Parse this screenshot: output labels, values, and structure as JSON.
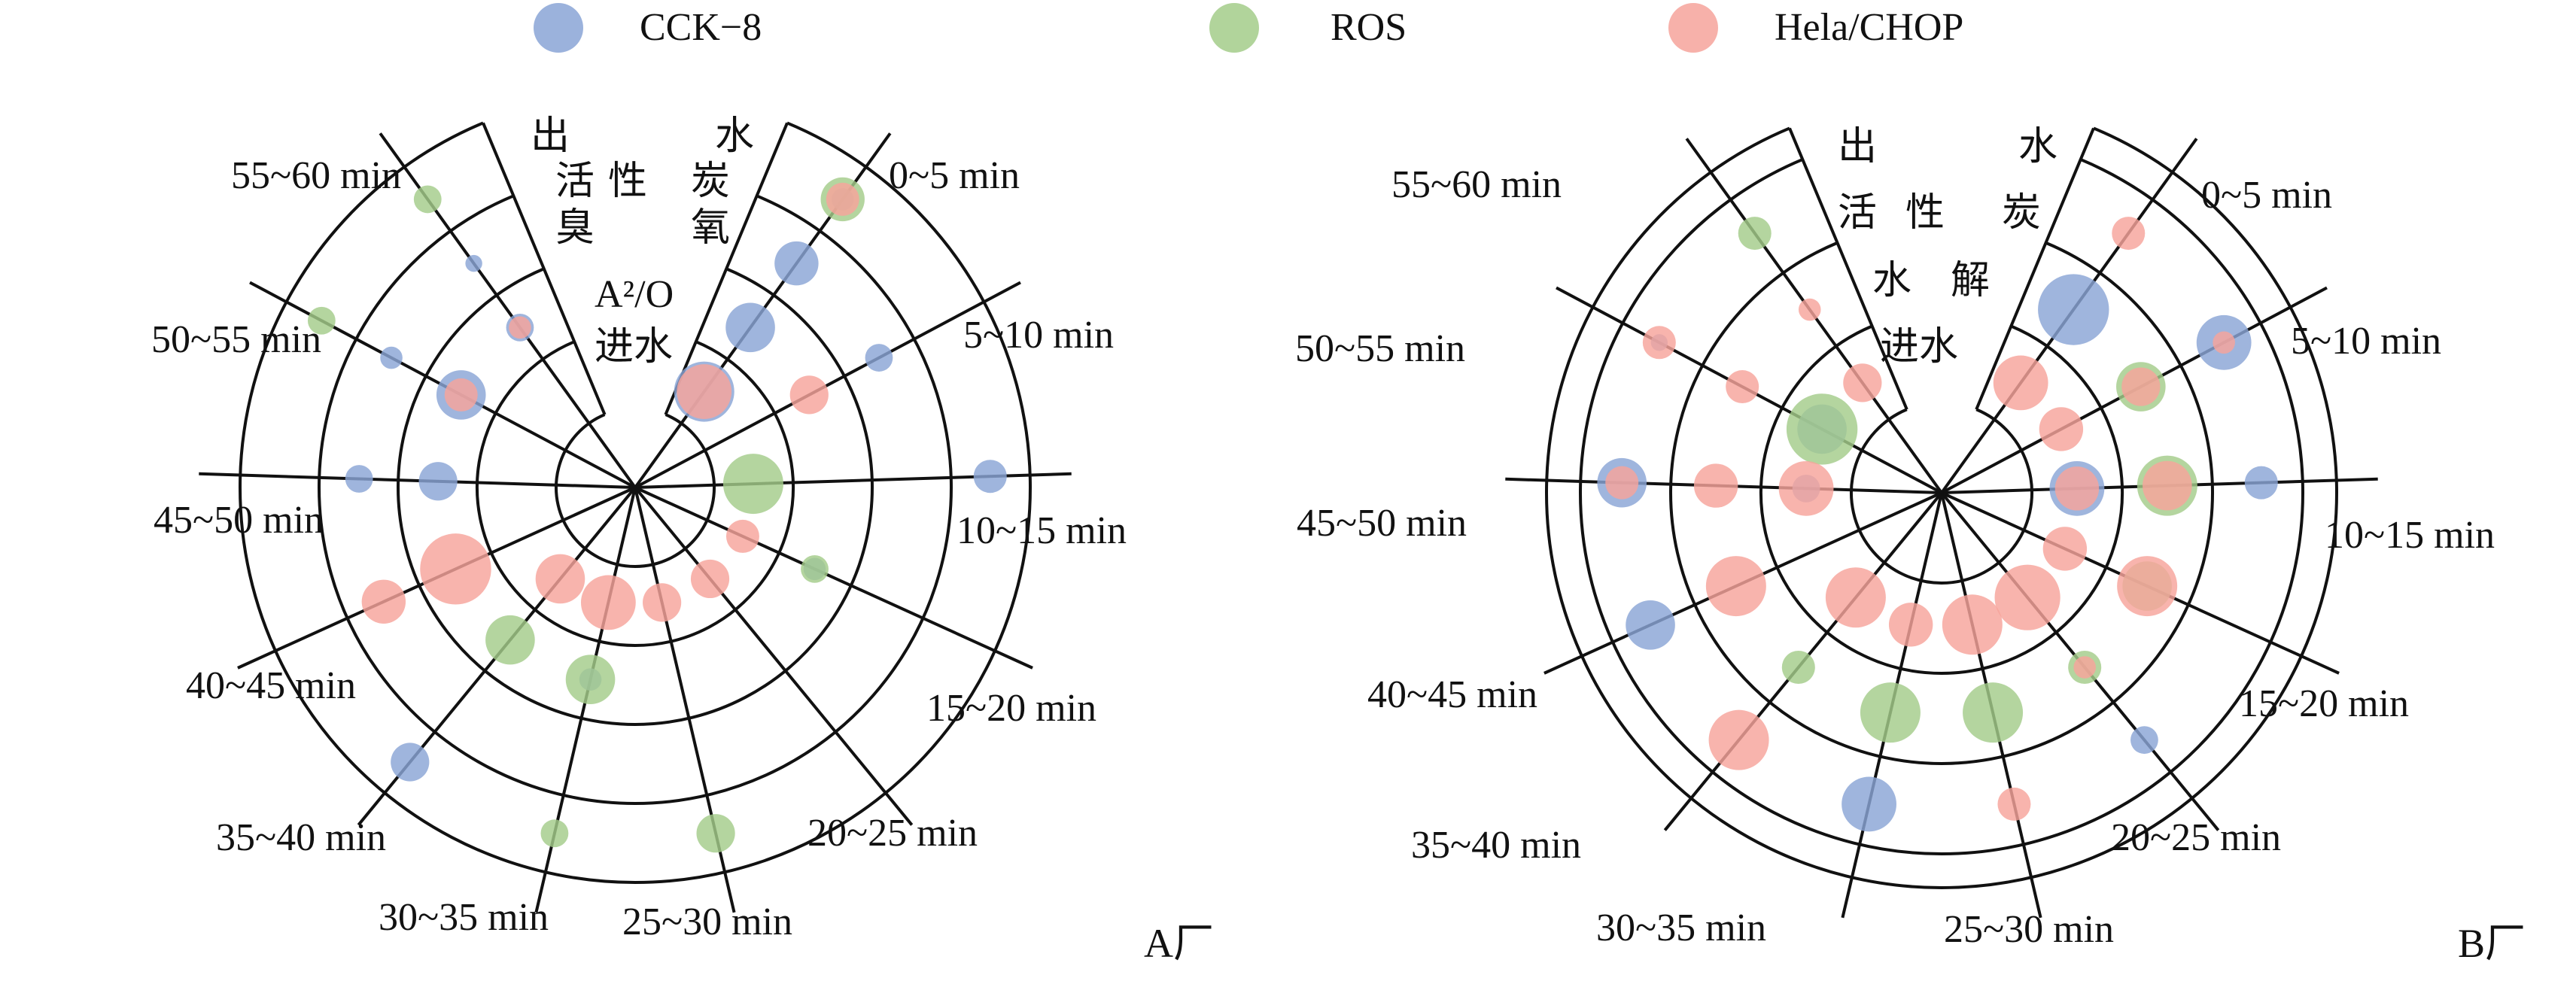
{
  "legend": [
    {
      "key": "cck8",
      "label": "CCK−8",
      "color": "#8aa5d6"
    },
    {
      "key": "ros",
      "label": "ROS",
      "color": "#a3cc8a"
    },
    {
      "key": "hela",
      "label": "Hela/CHOP",
      "color": "#f6a39b"
    }
  ],
  "chart_data": [
    {
      "type": "polar-bubble",
      "panel_label": "A厂",
      "sectors": [
        "0~5 min",
        "5~10 min",
        "10~15 min",
        "15~20 min",
        "20~25 min",
        "25~30 min",
        "30~35 min",
        "35~40 min",
        "40~45 min",
        "45~50 min",
        "50~55 min",
        "55~60 min"
      ],
      "ring_labels_outer_to_inner": [
        "出水",
        "活性炭",
        "臭氧",
        "A²/O",
        "进水"
      ],
      "series": [
        {
          "name": "CCK−8",
          "points": [
            {
              "sector": 0,
              "stage": "出水",
              "size": 3
            },
            {
              "sector": 0,
              "stage": "活性炭",
              "size": 7
            },
            {
              "sector": 0,
              "stage": "臭氧",
              "size": 8
            },
            {
              "sector": 0,
              "stage": "A²/O",
              "size": 10
            },
            {
              "sector": 1,
              "stage": "活性炭",
              "size": 4
            },
            {
              "sector": 2,
              "stage": "出水",
              "size": 5
            },
            {
              "sector": 3,
              "stage": "臭氧",
              "size": 3
            },
            {
              "sector": 6,
              "stage": "臭氧",
              "size": 3
            },
            {
              "sector": 7,
              "stage": "出水",
              "size": 6
            },
            {
              "sector": 9,
              "stage": "活性炭",
              "size": 4
            },
            {
              "sector": 9,
              "stage": "臭氧",
              "size": 6
            },
            {
              "sector": 10,
              "stage": "活性炭",
              "size": 3
            },
            {
              "sector": 10,
              "stage": "臭氧",
              "size": 8
            },
            {
              "sector": 11,
              "stage": "活性炭",
              "size": 2
            },
            {
              "sector": 11,
              "stage": "臭氧",
              "size": 4
            }
          ]
        },
        {
          "name": "ROS",
          "points": [
            {
              "sector": 0,
              "stage": "出水",
              "size": 7
            },
            {
              "sector": 2,
              "stage": "A²/O",
              "size": 10
            },
            {
              "sector": 3,
              "stage": "臭氧",
              "size": 4
            },
            {
              "sector": 5,
              "stage": "出水",
              "size": 6
            },
            {
              "sector": 6,
              "stage": "出水",
              "size": 4
            },
            {
              "sector": 6,
              "stage": "臭氧",
              "size": 8
            },
            {
              "sector": 7,
              "stage": "臭氧",
              "size": 8
            },
            {
              "sector": 10,
              "stage": "出水",
              "size": 4
            },
            {
              "sector": 11,
              "stage": "出水",
              "size": 4
            }
          ]
        },
        {
          "name": "Hela/CHOP",
          "points": [
            {
              "sector": 0,
              "stage": "出水",
              "size": 5
            },
            {
              "sector": 0,
              "stage": "A²/O",
              "size": 9
            },
            {
              "sector": 1,
              "stage": "臭氧",
              "size": 6
            },
            {
              "sector": 3,
              "stage": "A²/O",
              "size": 5
            },
            {
              "sector": 4,
              "stage": "A²/O",
              "size": 6
            },
            {
              "sector": 5,
              "stage": "A²/O",
              "size": 6
            },
            {
              "sector": 6,
              "stage": "A²/O",
              "size": 9
            },
            {
              "sector": 7,
              "stage": "A²/O",
              "size": 8
            },
            {
              "sector": 8,
              "stage": "臭氧",
              "size": 12
            },
            {
              "sector": 8,
              "stage": "活性炭",
              "size": 7
            },
            {
              "sector": 10,
              "stage": "臭氧",
              "size": 5
            },
            {
              "sector": 11,
              "stage": "臭氧",
              "size": 3
            }
          ]
        }
      ]
    },
    {
      "type": "polar-bubble",
      "panel_label": "B厂",
      "sectors": [
        "0~5 min",
        "5~10 min",
        "10~15 min",
        "15~20 min",
        "20~25 min",
        "25~30 min",
        "30~35 min",
        "35~40 min",
        "40~45 min",
        "45~50 min",
        "50~55 min",
        "55~60 min"
      ],
      "ring_labels_outer_to_inner": [
        "出水",
        "活性炭",
        "水解",
        "进水"
      ],
      "series": [
        {
          "name": "CCK−8",
          "points": [
            {
              "sector": 0,
              "stage": "活性炭",
              "size": 12
            },
            {
              "sector": 1,
              "stage": "出水",
              "size": 9
            },
            {
              "sector": 2,
              "stage": "出水",
              "size": 5
            },
            {
              "sector": 2,
              "stage": "水解",
              "size": 9
            },
            {
              "sector": 4,
              "stage": "出水",
              "size": 4
            },
            {
              "sector": 6,
              "stage": "出水",
              "size": 9
            },
            {
              "sector": 8,
              "stage": "出水",
              "size": 8
            },
            {
              "sector": 9,
              "stage": "出水",
              "size": 8
            },
            {
              "sector": 9,
              "stage": "水解",
              "size": 4
            },
            {
              "sector": 10,
              "stage": "出水",
              "size": 2
            },
            {
              "sector": 10,
              "stage": "水解",
              "size": 8
            }
          ]
        },
        {
          "name": "ROS",
          "points": [
            {
              "sector": 1,
              "stage": "活性炭",
              "size": 8
            },
            {
              "sector": 2,
              "stage": "活性炭",
              "size": 10
            },
            {
              "sector": 3,
              "stage": "活性炭",
              "size": 8
            },
            {
              "sector": 4,
              "stage": "活性炭",
              "size": 5
            },
            {
              "sector": 5,
              "stage": "活性炭",
              "size": 10
            },
            {
              "sector": 6,
              "stage": "活性炭",
              "size": 10
            },
            {
              "sector": 7,
              "stage": "活性炭",
              "size": 5
            },
            {
              "sector": 10,
              "stage": "水解",
              "size": 12
            },
            {
              "sector": 11,
              "stage": "出水",
              "size": 5
            }
          ]
        },
        {
          "name": "Hela/CHOP",
          "points": [
            {
              "sector": 0,
              "stage": "出水",
              "size": 5
            },
            {
              "sector": 0,
              "stage": "水解",
              "size": 9
            },
            {
              "sector": 1,
              "stage": "出水",
              "size": 3
            },
            {
              "sector": 1,
              "stage": "活性炭",
              "size": 6
            },
            {
              "sector": 1,
              "stage": "水解",
              "size": 7
            },
            {
              "sector": 2,
              "stage": "活性炭",
              "size": 8
            },
            {
              "sector": 2,
              "stage": "水解",
              "size": 7
            },
            {
              "sector": 3,
              "stage": "活性炭",
              "size": 10
            },
            {
              "sector": 3,
              "stage": "水解",
              "size": 7
            },
            {
              "sector": 4,
              "stage": "活性炭",
              "size": 3
            },
            {
              "sector": 4,
              "stage": "水解",
              "size": 11
            },
            {
              "sector": 5,
              "stage": "出水",
              "size": 5
            },
            {
              "sector": 5,
              "stage": "水解",
              "size": 10
            },
            {
              "sector": 6,
              "stage": "水解",
              "size": 7
            },
            {
              "sector": 7,
              "stage": "出水",
              "size": 10
            },
            {
              "sector": 7,
              "stage": "水解",
              "size": 10
            },
            {
              "sector": 8,
              "stage": "活性炭",
              "size": 10
            },
            {
              "sector": 9,
              "stage": "出水",
              "size": 5
            },
            {
              "sector": 9,
              "stage": "活性炭",
              "size": 7
            },
            {
              "sector": 9,
              "stage": "水解",
              "size": 9
            },
            {
              "sector": 10,
              "stage": "出水",
              "size": 5
            },
            {
              "sector": 10,
              "stage": "活性炭",
              "size": 5
            },
            {
              "sector": 11,
              "stage": "活性炭",
              "size": 3
            },
            {
              "sector": 11,
              "stage": "水解",
              "size": 6
            }
          ]
        }
      ]
    }
  ]
}
